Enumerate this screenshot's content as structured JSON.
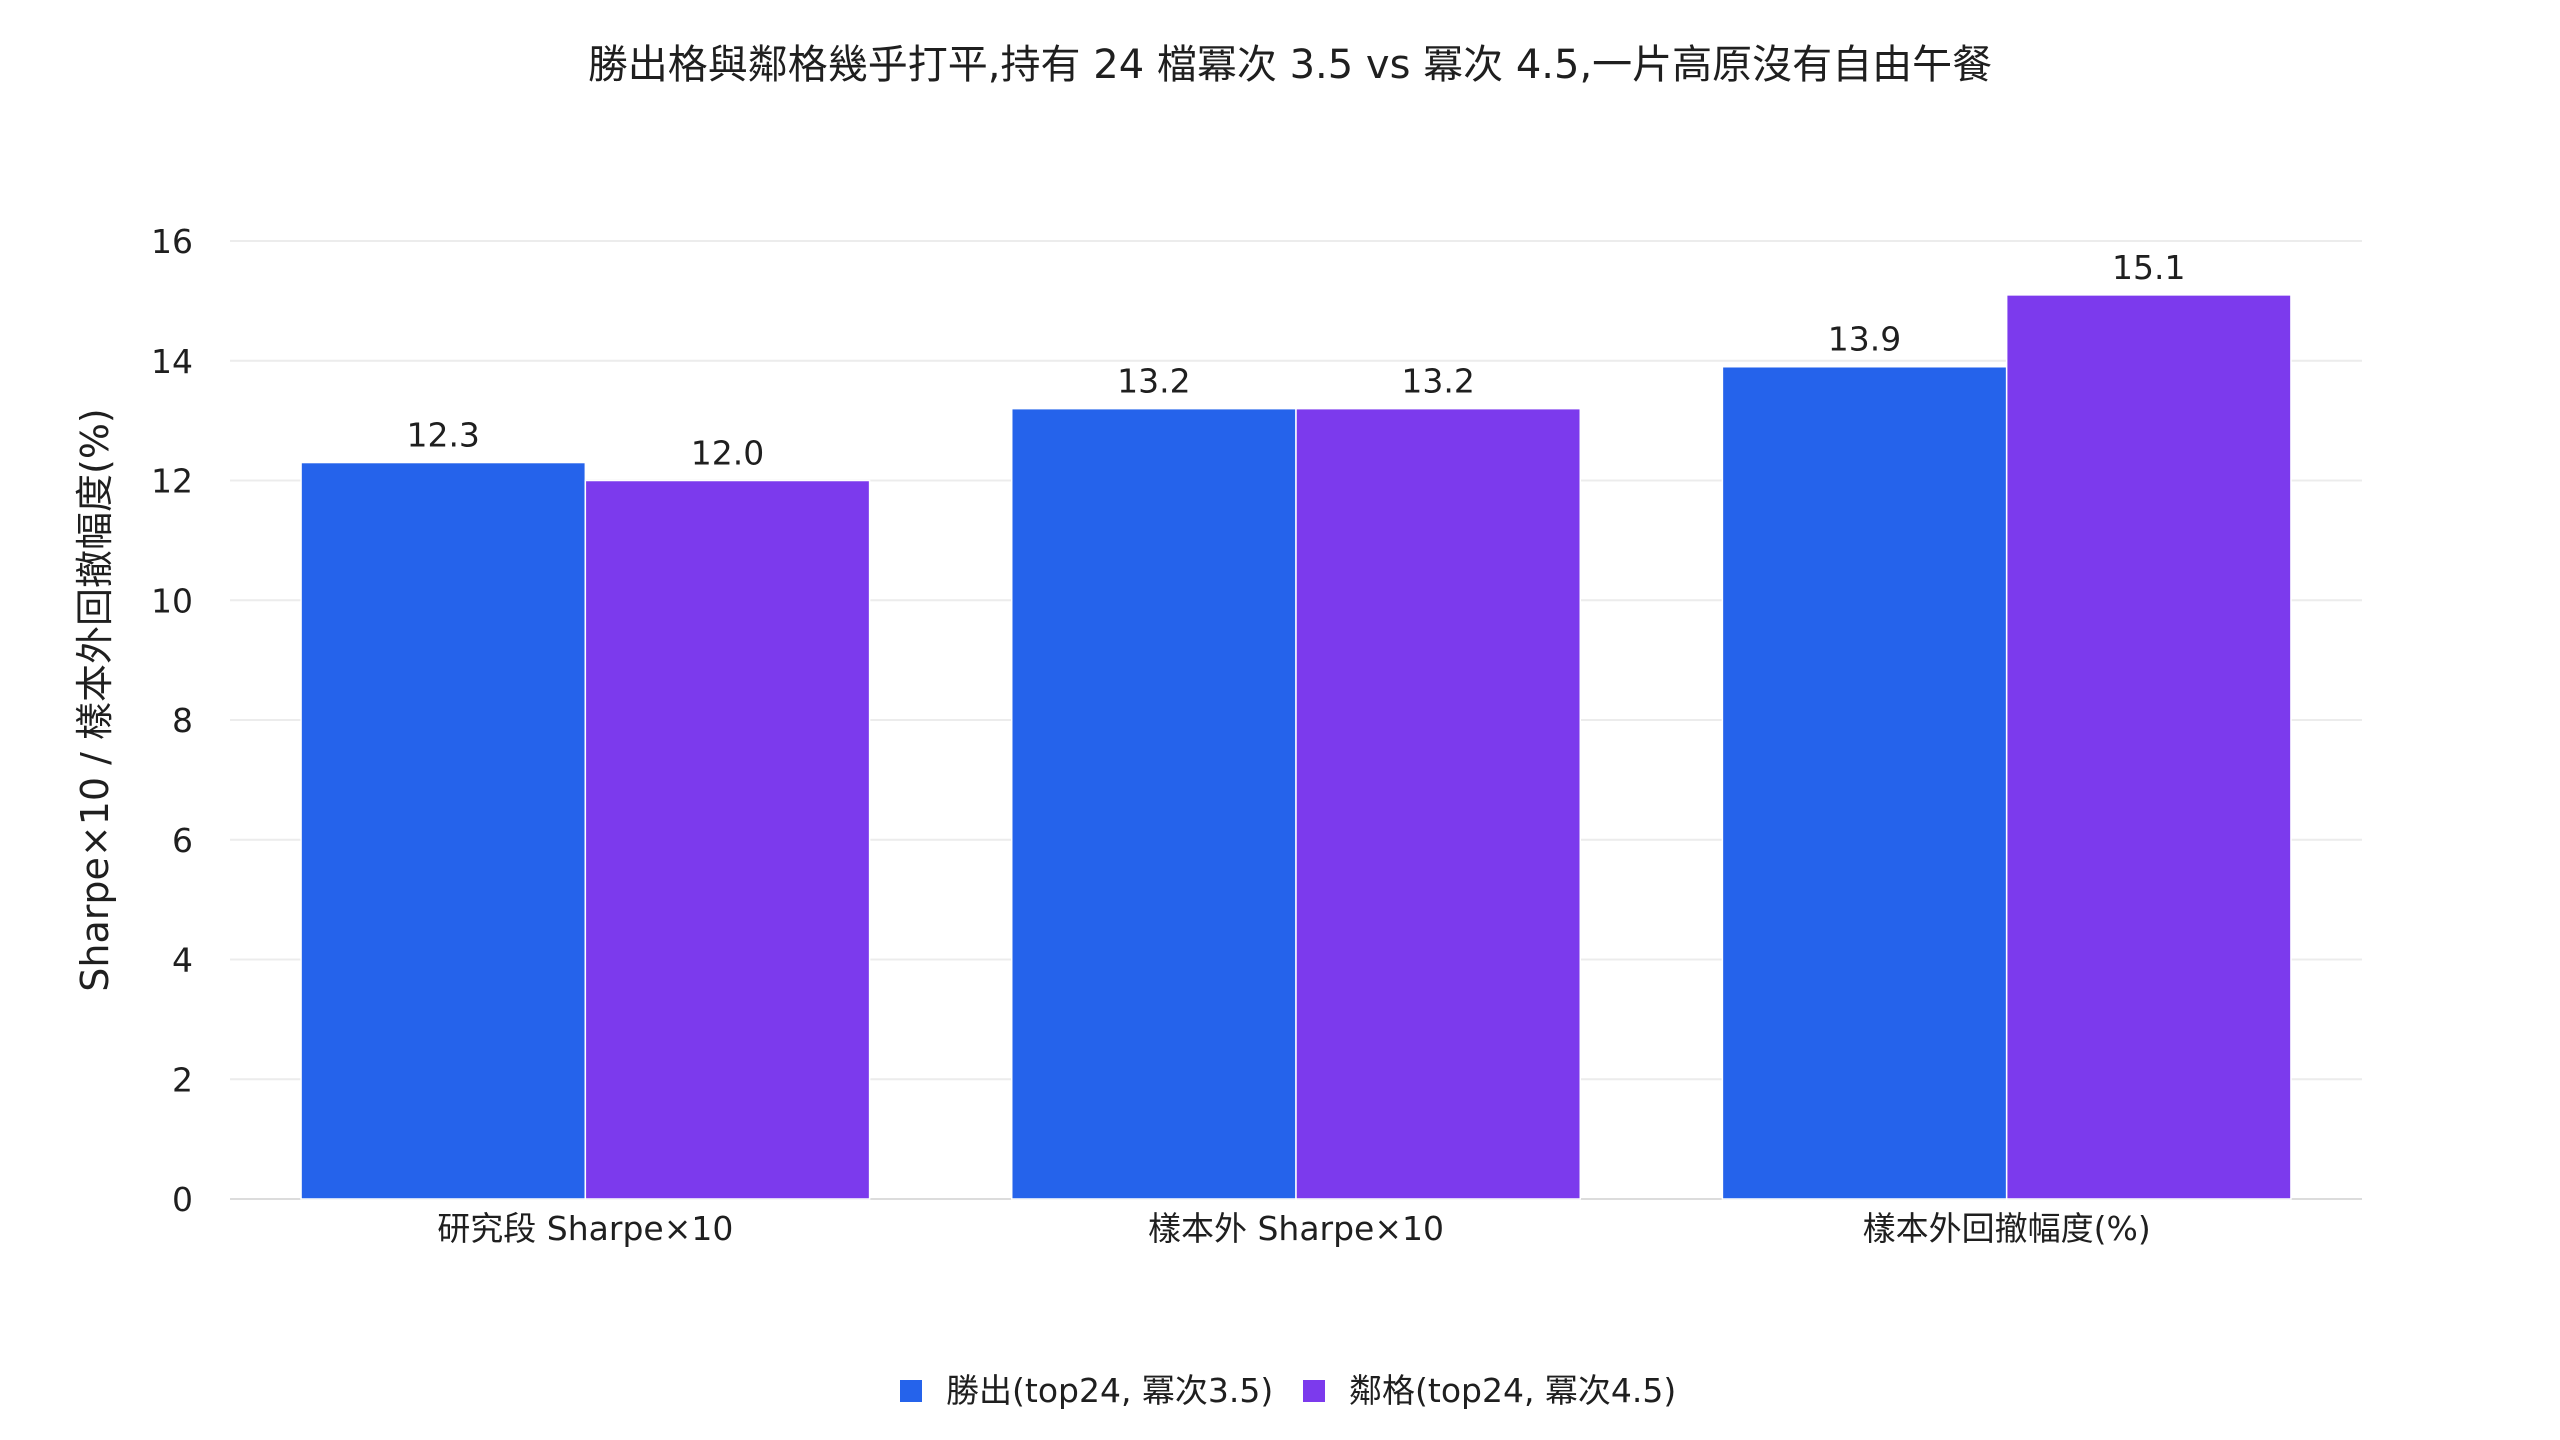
{
  "chart_data": {
    "type": "bar",
    "title": "勝出格與鄰格幾乎打平,持有 24 檔冪次 3.5 vs 冪次 4.5,一片高原沒有自由午餐",
    "ylabel": "Sharpe×10 / 樣本外回撤幅度(%)",
    "xlabel": "",
    "ylim": [
      0,
      16
    ],
    "yticks": [
      0,
      2,
      4,
      6,
      8,
      10,
      12,
      14,
      16
    ],
    "grid": true,
    "legend_position": "bottom-center",
    "categories": [
      "研究段 Sharpe×10",
      "樣本外 Sharpe×10",
      "樣本外回撤幅度(%)"
    ],
    "series": [
      {
        "name": "勝出(top24, 冪次3.5)",
        "color": "#2563eb",
        "values": [
          12.3,
          13.2,
          13.9
        ],
        "labels": [
          "12.3",
          "13.2",
          "13.9"
        ]
      },
      {
        "name": "鄰格(top24, 冪次4.5)",
        "color": "#7c3aed",
        "values": [
          12.0,
          13.2,
          15.1
        ],
        "labels": [
          "12.0",
          "13.2",
          "15.1"
        ]
      }
    ]
  }
}
